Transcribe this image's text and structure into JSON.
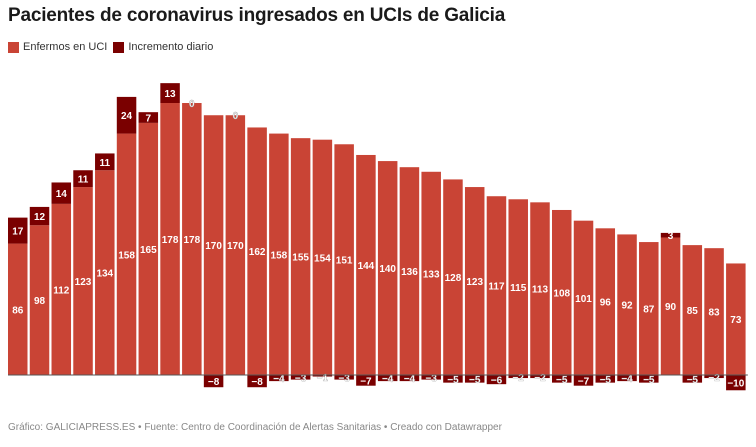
{
  "title": "Pacientes de coronavirus ingresados en UCIs de Galicia",
  "footer": "Gráfico: GALICIAPRESS.ES • Fuente: Centro de Coordinación de Alertas Sanitarias • Creado con Datawrapper",
  "colors": {
    "base": "#c94435",
    "increment": "#7a0000"
  },
  "chart_data": {
    "type": "bar",
    "stacked": true,
    "title": "Pacientes de coronavirus ingresados en UCIs de Galicia",
    "xlabel": "",
    "ylabel": "",
    "grid": false,
    "legend_position": "top-left",
    "series": [
      {
        "name": "Enfermos en UCI",
        "values": [
          86,
          98,
          112,
          123,
          134,
          158,
          165,
          178,
          178,
          170,
          170,
          162,
          158,
          155,
          154,
          151,
          144,
          140,
          136,
          133,
          128,
          123,
          117,
          115,
          113,
          108,
          101,
          96,
          92,
          87,
          90,
          85,
          83,
          73
        ]
      },
      {
        "name": "Incremento diario",
        "values": [
          17,
          12,
          14,
          11,
          11,
          24,
          7,
          13,
          0,
          -8,
          0,
          -8,
          -4,
          -3,
          -1,
          -3,
          -7,
          -4,
          -4,
          -3,
          -5,
          -5,
          -6,
          -2,
          -2,
          -5,
          -7,
          -5,
          -4,
          -5,
          3,
          -5,
          -2,
          -10
        ]
      }
    ]
  }
}
